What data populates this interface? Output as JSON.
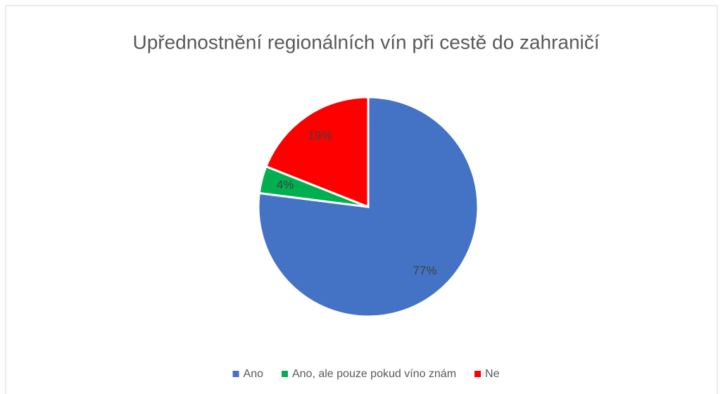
{
  "chart_data": {
    "type": "pie",
    "title": "Upřednostnění regionálních vín při cestě do zahraničí",
    "categories": [
      "Ano",
      "Ano, ale pouze pokud víno znám",
      "Ne"
    ],
    "values": [
      77,
      4,
      19
    ],
    "value_labels": [
      "77%",
      "4%",
      "19%"
    ],
    "colors": [
      "#4472c4",
      "#00b050",
      "#ff0000"
    ],
    "legend": "bottom"
  }
}
